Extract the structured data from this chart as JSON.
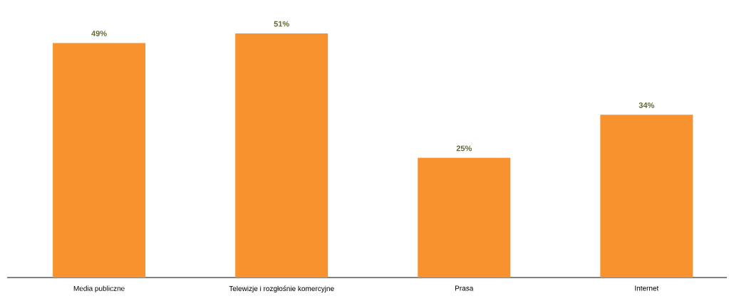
{
  "chart_data": {
    "type": "bar",
    "categories": [
      "Media publiczne",
      "Telewizje i rozgłośnie komercyjne",
      "Prasa",
      "Internet"
    ],
    "values": [
      49,
      51,
      25,
      34
    ],
    "value_labels": [
      "49%",
      "51%",
      "25%",
      "34%"
    ],
    "color": "#f7922f"
  }
}
